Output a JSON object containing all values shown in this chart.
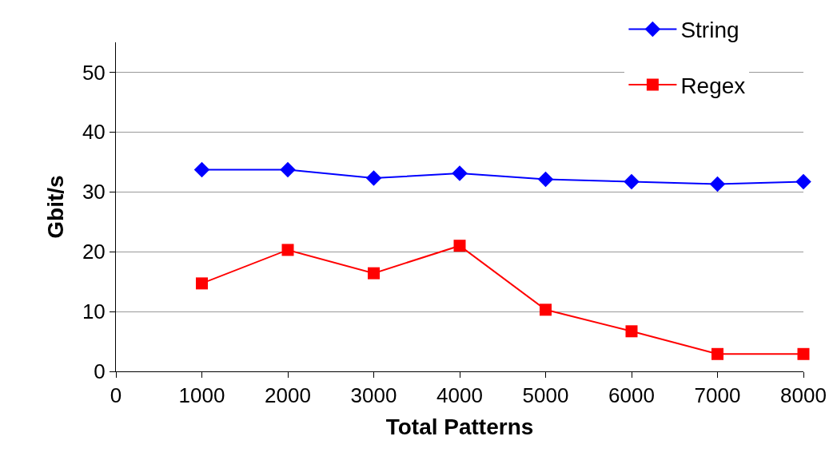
{
  "chart_data": {
    "type": "line",
    "xlabel": "Total Patterns",
    "ylabel": "Gbit/s",
    "x": [
      1000,
      2000,
      3000,
      4000,
      5000,
      6000,
      7000,
      8000
    ],
    "xlim": [
      0,
      8000
    ],
    "xticks": [
      0,
      1000,
      2000,
      3000,
      4000,
      5000,
      6000,
      7000,
      8000
    ],
    "ylim": [
      0,
      55
    ],
    "yticks": [
      0,
      10,
      20,
      30,
      40,
      50
    ],
    "series": [
      {
        "name": "String",
        "color": "#0000ff",
        "marker": "diamond",
        "values": [
          33.7,
          33.7,
          32.3,
          33.1,
          32.1,
          31.7,
          31.3,
          31.7
        ]
      },
      {
        "name": "Regex",
        "color": "#ff0000",
        "marker": "square",
        "values": [
          14.7,
          20.3,
          16.4,
          21.0,
          10.3,
          6.7,
          2.9,
          2.9
        ]
      }
    ],
    "grid": "y",
    "legend": "top right",
    "line_style": "solid"
  }
}
